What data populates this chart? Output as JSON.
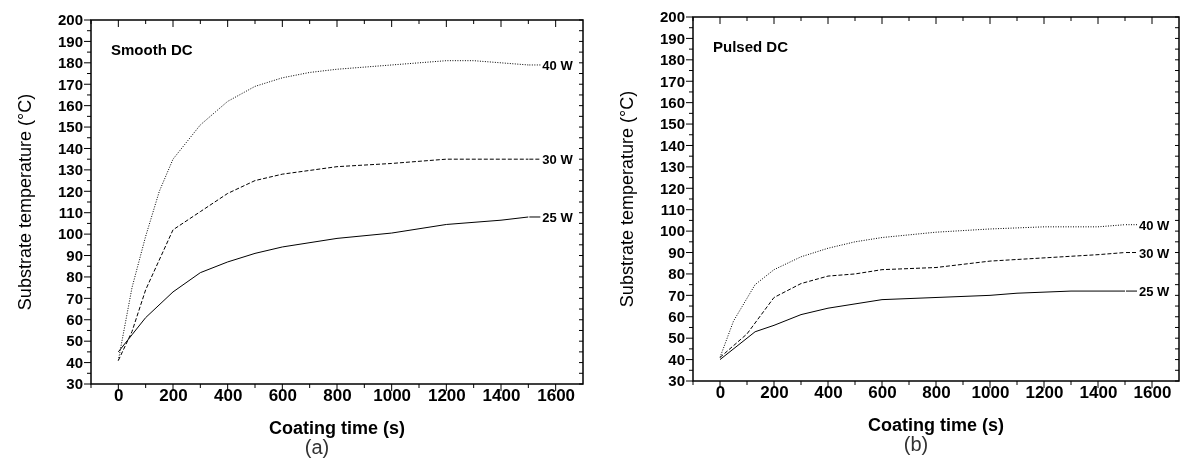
{
  "chart_data": [
    {
      "type": "line",
      "title": "Smooth DC",
      "xlabel": "Coating time (s)",
      "ylabel": "Substrate temperature (°C)",
      "annotations": [
        "(a)"
      ],
      "legend": "right",
      "xlim": [
        -100,
        1700
      ],
      "ylim": [
        30,
        200
      ],
      "xticks": [
        {
          "value": -100,
          "label": null
        },
        0,
        {
          "value": 100,
          "label": null
        },
        200,
        {
          "value": 300,
          "label": null
        },
        400,
        {
          "value": 500,
          "label": null
        },
        600,
        {
          "value": 700,
          "label": null
        },
        800,
        {
          "value": 900,
          "label": null
        },
        1000,
        {
          "value": 1100,
          "label": null
        },
        1200,
        {
          "value": 1300,
          "label": null
        },
        1400,
        {
          "value": 1500,
          "label": null
        },
        1600
      ],
      "yticks": [
        30,
        {
          "value": 35,
          "label": null
        },
        40,
        {
          "value": 45,
          "label": null
        },
        50,
        {
          "value": 55,
          "label": null
        },
        60,
        {
          "value": 65,
          "label": null
        },
        70,
        {
          "value": 75,
          "label": null
        },
        80,
        {
          "value": 85,
          "label": null
        },
        90,
        {
          "value": 95,
          "label": null
        },
        100,
        {
          "value": 105,
          "label": null
        },
        110,
        {
          "value": 115,
          "label": null
        },
        120,
        {
          "value": 125,
          "label": null
        },
        130,
        {
          "value": 135,
          "label": null
        },
        140,
        {
          "value": 145,
          "label": null
        },
        150,
        {
          "value": 155,
          "label": null
        },
        160,
        {
          "value": 165,
          "label": null
        },
        170,
        {
          "value": 175,
          "label": null
        },
        180,
        {
          "value": 185,
          "label": null
        },
        190,
        {
          "value": 195,
          "label": null
        },
        200
      ],
      "series": [
        {
          "name": "40 W",
          "color": "#000000",
          "line_style": "dotted",
          "x": [
            0,
            50,
            100,
            150,
            200,
            300,
            400,
            500,
            600,
            700,
            800,
            900,
            1000,
            1200,
            1300,
            1400,
            1500
          ],
          "values": [
            41,
            75,
            99,
            120,
            135,
            151,
            162,
            169,
            173,
            175.5,
            177,
            178,
            179,
            181,
            181,
            180,
            179
          ]
        },
        {
          "name": "30 W",
          "color": "#000000",
          "line_style": "dashed",
          "x": [
            0,
            50,
            100,
            200,
            300,
            400,
            500,
            600,
            800,
            1000,
            1200,
            1500
          ],
          "values": [
            41,
            54.5,
            74,
            102,
            110.5,
            119,
            125,
            128,
            131.5,
            133,
            135,
            135
          ]
        },
        {
          "name": "25 W",
          "color": "#000000",
          "line_style": "solid",
          "x": [
            0,
            50,
            100,
            200,
            300,
            400,
            500,
            600,
            800,
            1000,
            1200,
            1400,
            1500
          ],
          "values": [
            45,
            53,
            61,
            73,
            82,
            87,
            91,
            94,
            98,
            100.5,
            104.5,
            106.5,
            108
          ]
        }
      ]
    },
    {
      "type": "line",
      "title": "Pulsed DC",
      "xlabel": "Coating time (s)",
      "ylabel": "Substrate temperature (°C)",
      "annotations": [
        "(b)"
      ],
      "legend": "right",
      "xlim": [
        -100,
        1700
      ],
      "ylim": [
        30,
        200
      ],
      "xticks": [
        {
          "value": -100,
          "label": null
        },
        0,
        {
          "value": 100,
          "label": null
        },
        200,
        {
          "value": 300,
          "label": null
        },
        400,
        {
          "value": 500,
          "label": null
        },
        600,
        {
          "value": 700,
          "label": null
        },
        800,
        {
          "value": 900,
          "label": null
        },
        1000,
        {
          "value": 1100,
          "label": null
        },
        1200,
        {
          "value": 1300,
          "label": null
        },
        1400,
        {
          "value": 1500,
          "label": null
        },
        1600
      ],
      "yticks": [
        30,
        {
          "value": 35,
          "label": null
        },
        40,
        {
          "value": 45,
          "label": null
        },
        50,
        {
          "value": 55,
          "label": null
        },
        60,
        {
          "value": 65,
          "label": null
        },
        70,
        {
          "value": 75,
          "label": null
        },
        80,
        {
          "value": 85,
          "label": null
        },
        90,
        {
          "value": 95,
          "label": null
        },
        100,
        {
          "value": 105,
          "label": null
        },
        110,
        {
          "value": 115,
          "label": null
        },
        120,
        {
          "value": 125,
          "label": null
        },
        130,
        {
          "value": 135,
          "label": null
        },
        140,
        {
          "value": 145,
          "label": null
        },
        150,
        {
          "value": 155,
          "label": null
        },
        160,
        {
          "value": 165,
          "label": null
        },
        170,
        {
          "value": 175,
          "label": null
        },
        180,
        {
          "value": 185,
          "label": null
        },
        190,
        {
          "value": 195,
          "label": null
        },
        200
      ],
      "series": [
        {
          "name": "40 W",
          "color": "#000000",
          "line_style": "dotted",
          "x": [
            0,
            50,
            130,
            200,
            300,
            400,
            500,
            600,
            800,
            1000,
            1200,
            1400,
            1500
          ],
          "values": [
            41,
            58,
            75,
            82,
            88,
            92,
            95,
            97,
            99.5,
            101,
            102,
            102,
            103
          ]
        },
        {
          "name": "30 W",
          "color": "#000000",
          "line_style": "dashed",
          "x": [
            0,
            100,
            200,
            300,
            400,
            500,
            600,
            800,
            1000,
            1200,
            1400,
            1500
          ],
          "values": [
            41,
            52,
            69,
            75.5,
            79,
            80,
            82,
            83,
            86,
            87.5,
            89,
            90
          ]
        },
        {
          "name": "25 W",
          "color": "#000000",
          "line_style": "solid",
          "x": [
            0,
            130,
            200,
            300,
            400,
            500,
            600,
            800,
            1000,
            1100,
            1300,
            1500
          ],
          "values": [
            40,
            53,
            56,
            61,
            64,
            66,
            68,
            69,
            70,
            71,
            72,
            72
          ]
        }
      ]
    }
  ]
}
